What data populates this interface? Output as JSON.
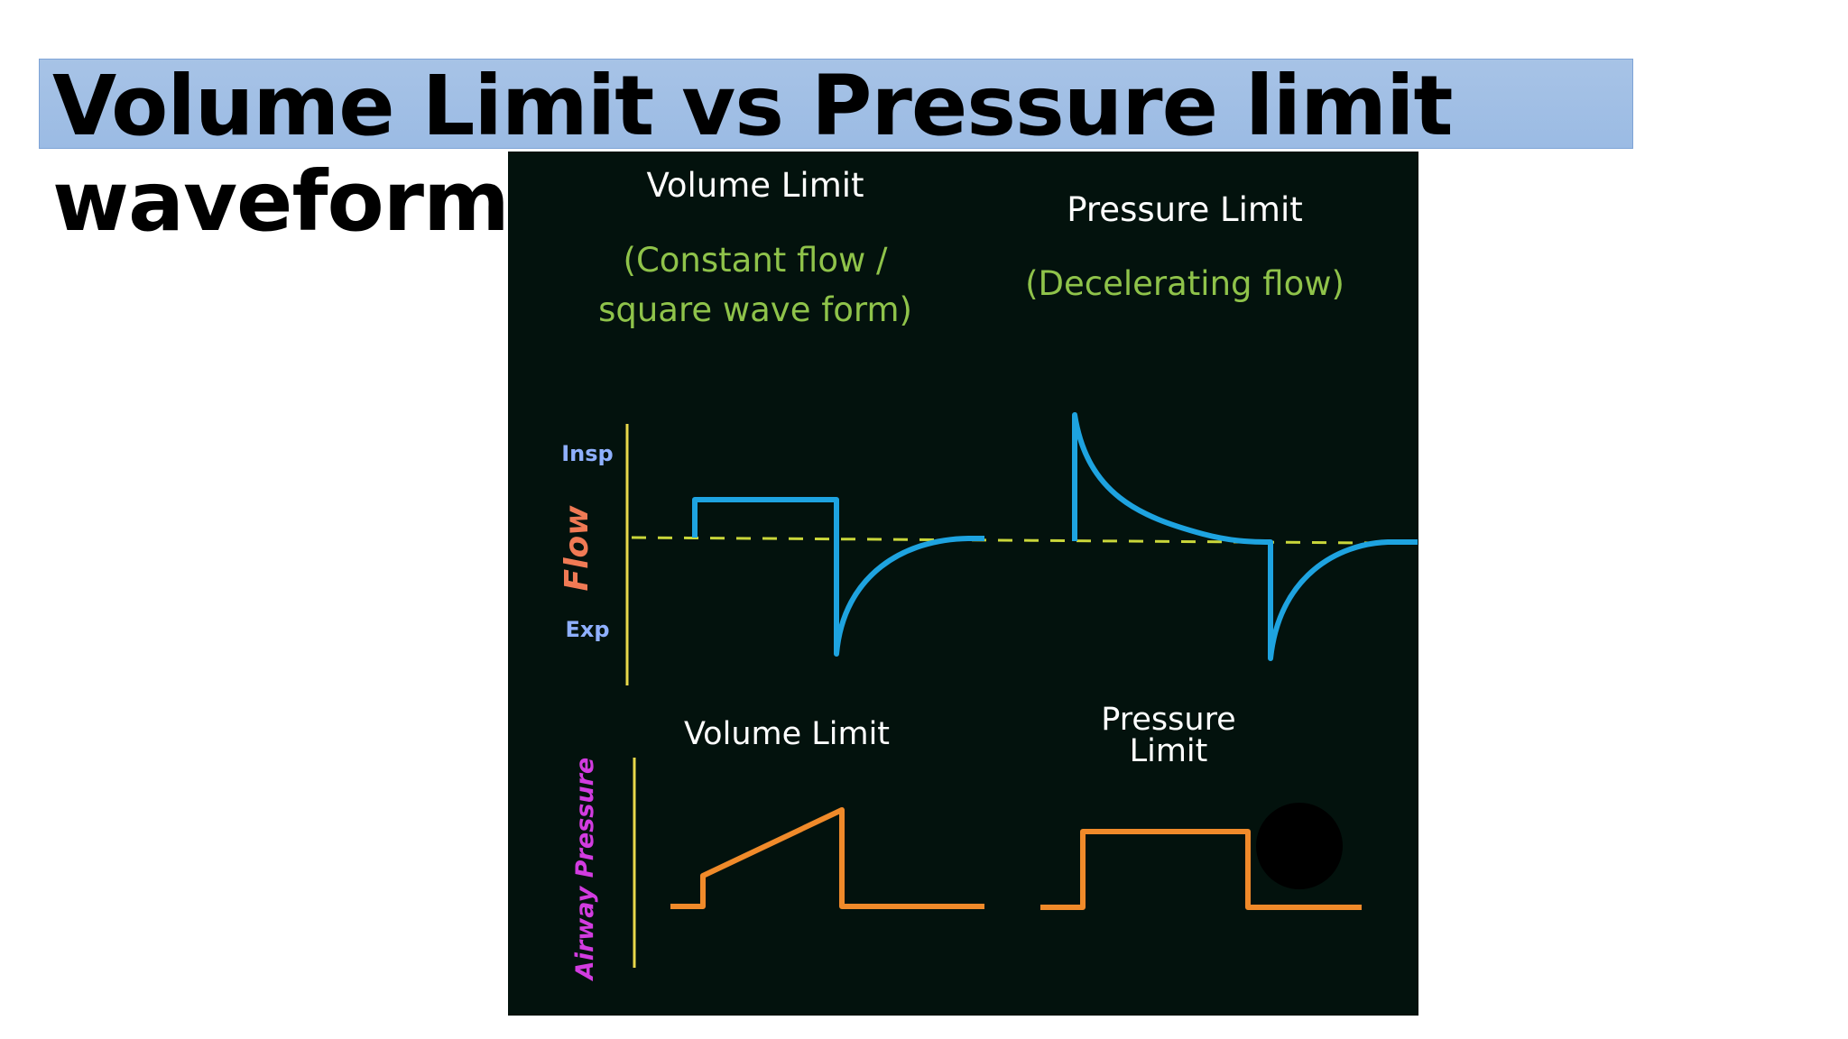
{
  "slide": {
    "title_line1": "Volume Limit vs Pressure limit",
    "title_line2": "waveform"
  },
  "colors": {
    "title_bar": "#9bbbe4",
    "figure_bg": "#03120d",
    "heading": "#ffffff",
    "subheading": "#8fc34a",
    "axis": "#e8d84a",
    "baseline": "#c9d63a",
    "flow_trace": "#1ea3e0",
    "pressure_trace": "#f08a2a",
    "insp_exp": "#8fb0ff",
    "flow_axis_label": "#f07a55",
    "pressure_axis_label": "#d23ce0"
  },
  "figure": {
    "volume_heading": "Volume Limit",
    "volume_sub_line1": "(Constant flow /",
    "volume_sub_line2": "square wave form)",
    "pressure_heading": "Pressure Limit",
    "pressure_sub": "(Decelerating flow)",
    "flow_axis_label": "Flow",
    "insp_label": "Insp",
    "exp_label": "Exp",
    "pressure_axis_label": "Airway Pressure",
    "lower_volume_label": "Volume Limit",
    "lower_pressure_line1": "Pressure",
    "lower_pressure_line2": "Limit"
  }
}
